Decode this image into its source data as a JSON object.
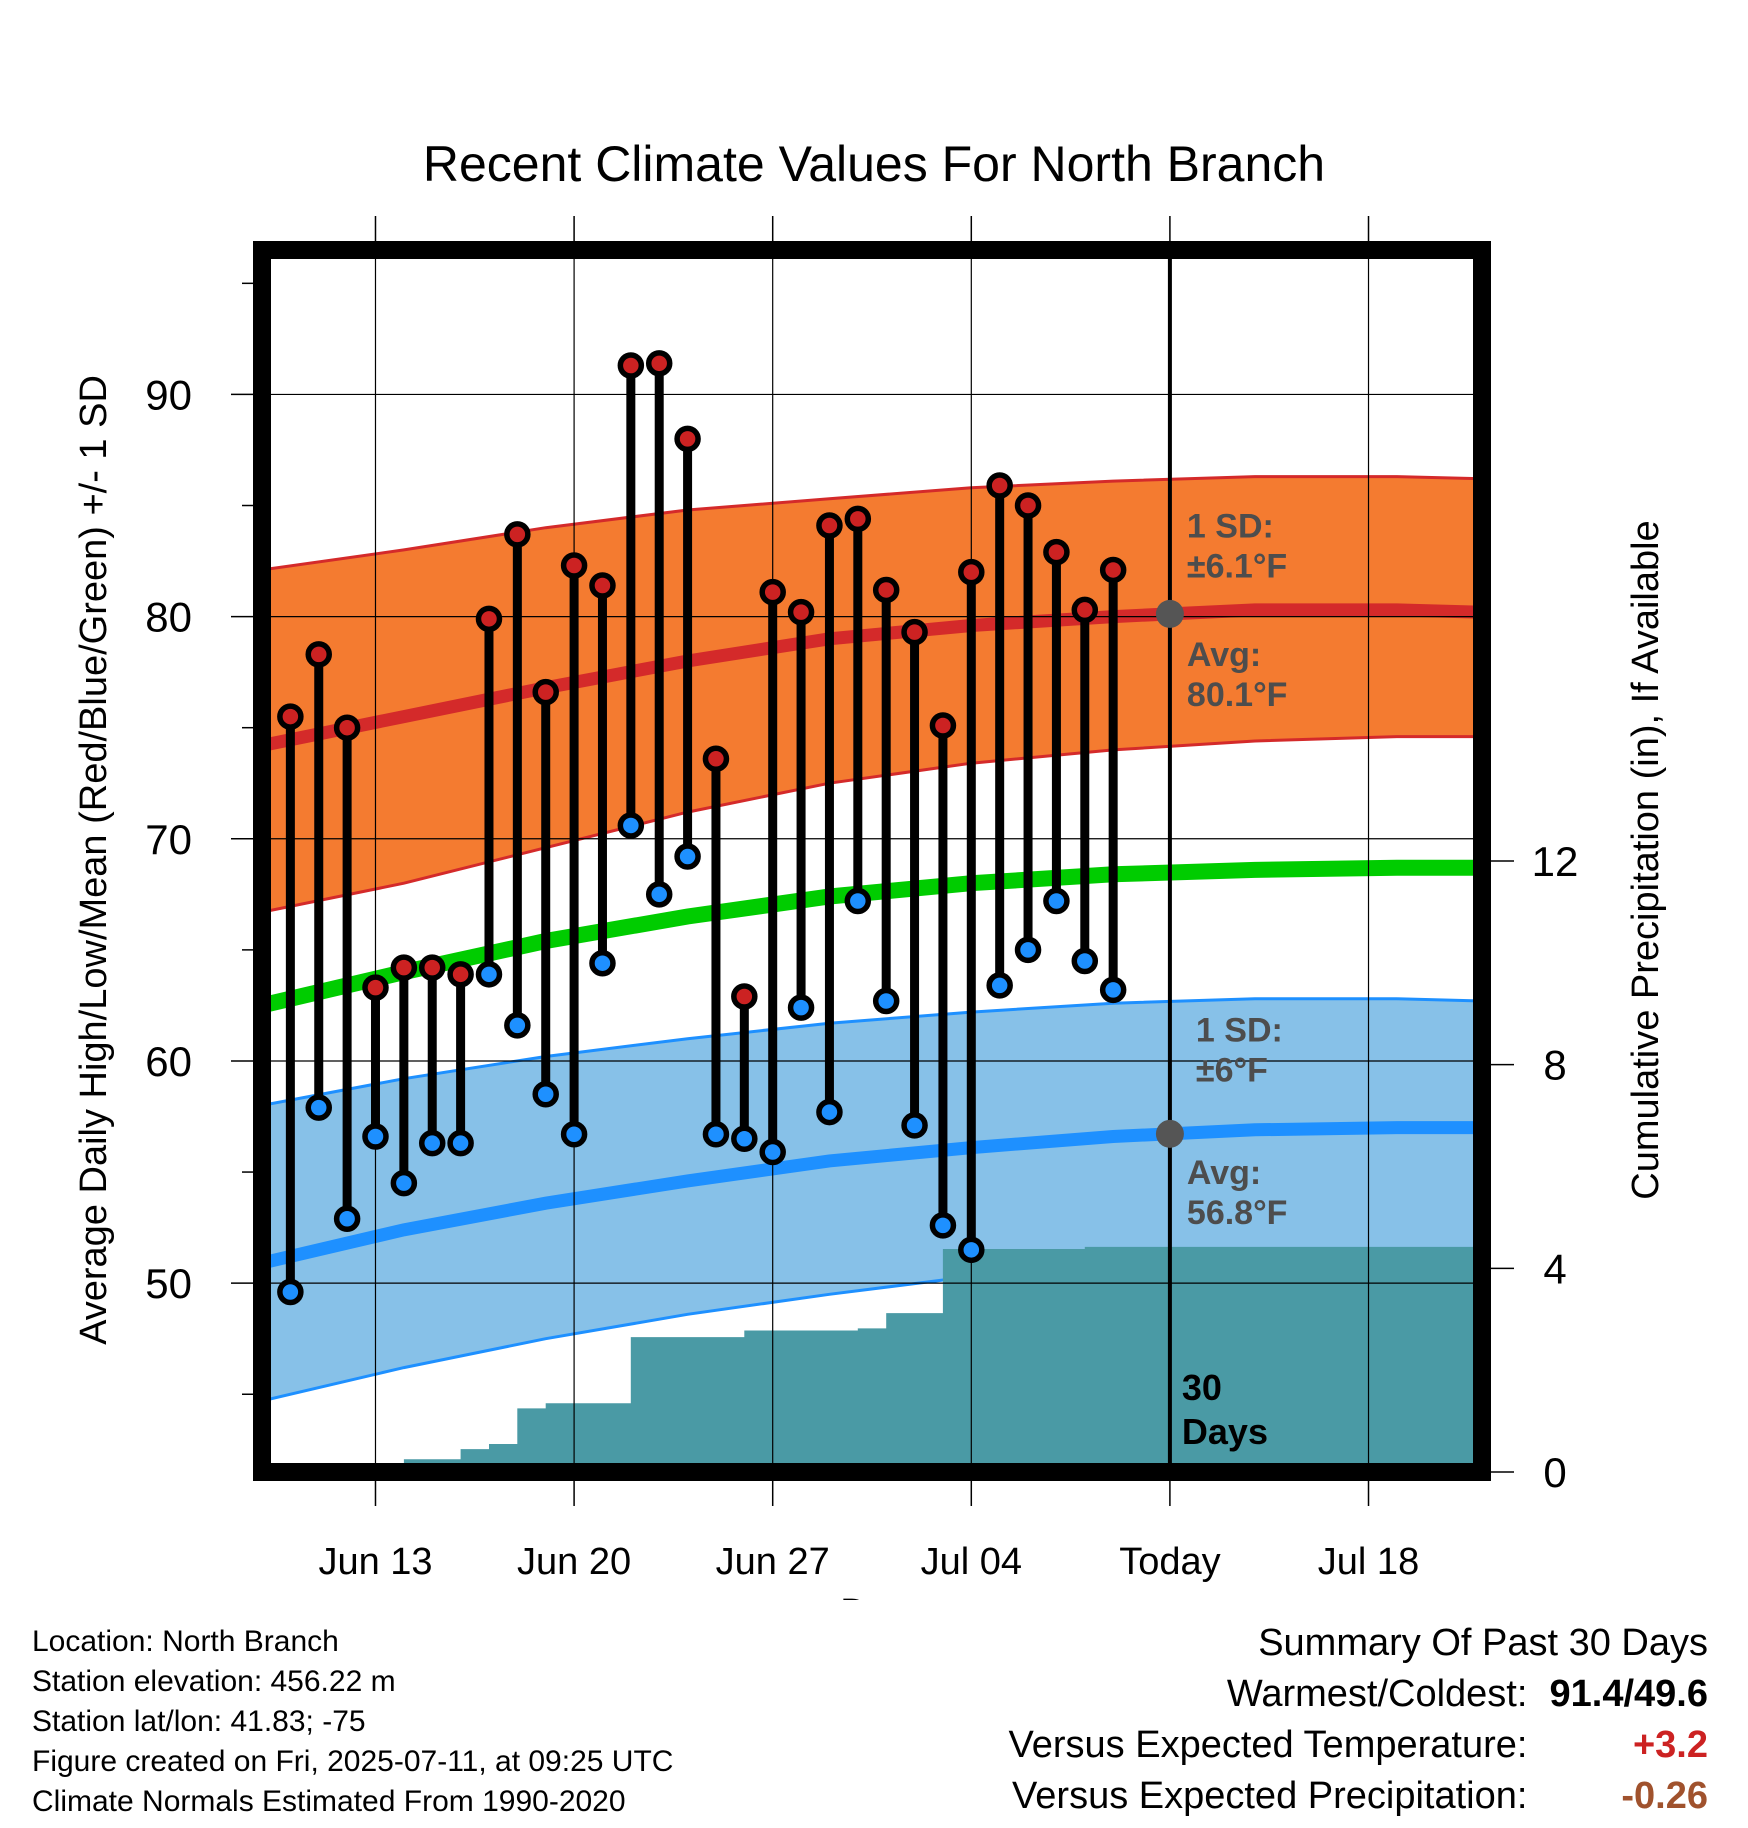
{
  "chart_data": {
    "type": "line",
    "title": "Recent Climate Values For North Branch",
    "xlabel": "Day",
    "ylabel_left": "Average Daily High/Low/Mean (Red/Blue/Green) +/- 1 SD",
    "ylabel_right": "Cumulative Precipitation (in), If Available",
    "xlim": [
      "2025-06-09",
      "2025-07-22"
    ],
    "ylim_left": [
      41.5,
      96.5
    ],
    "ylim_right": [
      0,
      24
    ],
    "x_ticks": [
      {
        "date": "2025-06-13",
        "label": "Jun 13"
      },
      {
        "date": "2025-06-20",
        "label": "Jun 20"
      },
      {
        "date": "2025-06-27",
        "label": "Jun 27"
      },
      {
        "date": "2025-07-04",
        "label": "Jul 04"
      },
      {
        "date": "2025-07-11",
        "label": "Today"
      },
      {
        "date": "2025-07-18",
        "label": "Jul 18"
      }
    ],
    "y_ticks_left": [
      50,
      60,
      70,
      80,
      90
    ],
    "y_ticks_right": [
      0,
      4,
      8,
      12
    ],
    "grid": true,
    "normals": {
      "dates": [
        "2025-06-09",
        "2025-06-14",
        "2025-06-19",
        "2025-06-24",
        "2025-06-29",
        "2025-07-04",
        "2025-07-09",
        "2025-07-14",
        "2025-07-19",
        "2025-07-22"
      ],
      "high_mean": [
        74.2,
        75.5,
        76.8,
        78.0,
        79.0,
        79.6,
        80.0,
        80.3,
        80.3,
        80.2
      ],
      "high_upper": [
        82.1,
        83.0,
        84.0,
        84.8,
        85.3,
        85.8,
        86.1,
        86.3,
        86.3,
        86.2
      ],
      "high_lower": [
        66.7,
        68.0,
        69.6,
        71.2,
        72.5,
        73.4,
        74.0,
        74.4,
        74.6,
        74.6
      ],
      "mean": [
        62.5,
        64.0,
        65.4,
        66.5,
        67.4,
        68.0,
        68.4,
        68.6,
        68.7,
        68.7
      ],
      "low_mean": [
        50.9,
        52.4,
        53.6,
        54.6,
        55.5,
        56.1,
        56.6,
        56.9,
        57.0,
        57.0
      ],
      "low_upper": [
        58.0,
        59.2,
        60.2,
        61.0,
        61.7,
        62.2,
        62.6,
        62.8,
        62.8,
        62.7
      ],
      "low_lower": [
        44.7,
        46.2,
        47.5,
        48.6,
        49.5,
        50.3,
        50.9,
        51.3,
        51.4,
        51.4
      ]
    },
    "series": [
      {
        "name": "High",
        "color": "#cc2222",
        "x": [
          "2025-06-10",
          "2025-06-11",
          "2025-06-12",
          "2025-06-13",
          "2025-06-14",
          "2025-06-15",
          "2025-06-16",
          "2025-06-17",
          "2025-06-18",
          "2025-06-19",
          "2025-06-20",
          "2025-06-21",
          "2025-06-22",
          "2025-06-23",
          "2025-06-24",
          "2025-06-25",
          "2025-06-26",
          "2025-06-27",
          "2025-06-28",
          "2025-06-29",
          "2025-06-30",
          "2025-07-01",
          "2025-07-02",
          "2025-07-03",
          "2025-07-04",
          "2025-07-05",
          "2025-07-06",
          "2025-07-07",
          "2025-07-08",
          "2025-07-09",
          "2025-07-10"
        ],
        "values": [
          75.5,
          78.3,
          75.0,
          63.3,
          64.2,
          64.2,
          63.9,
          79.9,
          83.7,
          76.6,
          82.3,
          81.4,
          91.3,
          91.4,
          88.0,
          73.6,
          62.9,
          81.1,
          80.2,
          84.1,
          84.4,
          81.2,
          79.3,
          75.1,
          82.0,
          85.9,
          85.0,
          82.9,
          80.3,
          82.1,
          null
        ]
      },
      {
        "name": "Low",
        "color": "#1e90ff",
        "x": [
          "2025-06-10",
          "2025-06-11",
          "2025-06-12",
          "2025-06-13",
          "2025-06-14",
          "2025-06-15",
          "2025-06-16",
          "2025-06-17",
          "2025-06-18",
          "2025-06-19",
          "2025-06-20",
          "2025-06-21",
          "2025-06-22",
          "2025-06-23",
          "2025-06-24",
          "2025-06-25",
          "2025-06-26",
          "2025-06-27",
          "2025-06-28",
          "2025-06-29",
          "2025-06-30",
          "2025-07-01",
          "2025-07-02",
          "2025-07-03",
          "2025-07-04",
          "2025-07-05",
          "2025-07-06",
          "2025-07-07",
          "2025-07-08",
          "2025-07-09",
          "2025-07-10"
        ],
        "values": [
          49.6,
          57.9,
          52.9,
          56.6,
          54.5,
          56.3,
          56.3,
          63.9,
          61.6,
          58.5,
          56.7,
          64.4,
          70.6,
          67.5,
          69.2,
          56.7,
          56.5,
          55.9,
          62.4,
          57.7,
          67.2,
          62.7,
          57.1,
          52.6,
          51.5,
          63.4,
          65.0,
          67.2,
          64.5,
          63.2,
          null
        ]
      }
    ],
    "precip": {
      "dates": [
        "2025-06-13",
        "2025-06-14",
        "2025-06-15",
        "2025-06-16",
        "2025-06-17",
        "2025-06-18",
        "2025-06-19",
        "2025-06-20",
        "2025-06-21",
        "2025-06-22",
        "2025-06-23",
        "2025-06-24",
        "2025-06-25",
        "2025-06-26",
        "2025-06-27",
        "2025-06-28",
        "2025-06-29",
        "2025-06-30",
        "2025-07-01",
        "2025-07-02",
        "2025-07-03",
        "2025-07-04",
        "2025-07-05",
        "2025-07-06",
        "2025-07-07",
        "2025-07-08",
        "2025-07-09",
        "2025-07-10",
        "2025-07-11",
        "2025-07-22"
      ],
      "values": [
        0.0,
        0.25,
        0.25,
        0.45,
        0.55,
        1.25,
        1.35,
        1.35,
        1.35,
        2.65,
        2.65,
        2.65,
        2.65,
        2.78,
        2.78,
        2.78,
        2.78,
        2.82,
        3.12,
        3.12,
        4.38,
        4.38,
        4.38,
        4.38,
        4.38,
        4.42,
        4.42,
        4.42,
        4.42,
        4.42
      ]
    },
    "today_line": {
      "date": "2025-07-11",
      "label_top": "30",
      "label_bottom": "Days"
    },
    "annotations": {
      "high_sd_label": "1 SD:",
      "high_sd_value": "±6.1°F",
      "high_avg_label": "Avg:",
      "high_avg_value": "80.1°F",
      "low_sd_label": "1 SD:",
      "low_sd_value": "±6°F",
      "low_avg_label": "Avg:",
      "low_avg_value": "56.8°F"
    },
    "colors": {
      "high_band": "#f47b30",
      "high_line": "#d42a2a",
      "mean_line": "#00cc00",
      "low_band": "#87c1e8",
      "low_line": "#1e90ff",
      "precip_fill": "#4a9aa5"
    }
  },
  "footer": {
    "location": "Location: North Branch",
    "elevation": "Station elevation: 456.22 m",
    "latlon": "Station lat/lon: 41.83; -75",
    "created": "Figure created on Fri, 2025-07-11, at 09:25 UTC",
    "normals": "Climate Normals Estimated From 1990-2020"
  },
  "summary": {
    "heading": "Summary Of Past 30 Days",
    "warm_cold_label": "Warmest/Coldest:",
    "warm_cold_value": "91.4/49.6",
    "temp_label": "Versus Expected Temperature:",
    "temp_value": "+3.2",
    "precip_label": "Versus Expected Precipitation:",
    "precip_value": "-0.26"
  }
}
